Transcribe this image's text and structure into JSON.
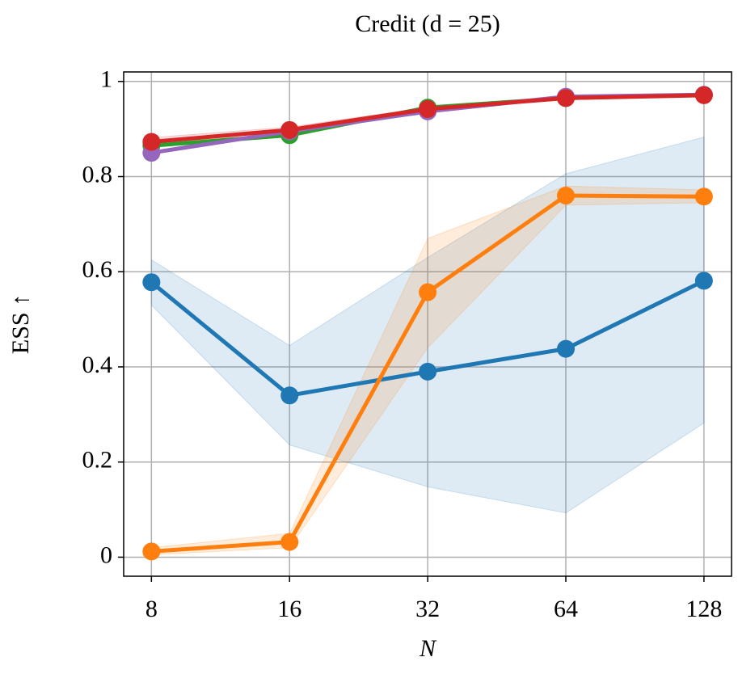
{
  "chart_data": {
    "type": "line",
    "title": "Credit (d = 25)",
    "xlabel": "N",
    "ylabel": "ESS ↑",
    "x": [
      8,
      16,
      32,
      64,
      128
    ],
    "xscale": "log",
    "xlim": [
      6.96,
      147
    ],
    "xticks": [
      8,
      16,
      32,
      64,
      128
    ],
    "ylim": [
      -0.04,
      1.02
    ],
    "yticks": [
      0,
      0.2,
      0.4,
      0.6,
      0.8,
      1
    ],
    "grid": true,
    "series": [
      {
        "color": "#1f77b4",
        "values": [
          0.578,
          0.34,
          0.39,
          0.438,
          0.581
        ],
        "lower": [
          0.53,
          0.236,
          0.148,
          0.093,
          0.282
        ],
        "upper": [
          0.625,
          0.445,
          0.63,
          0.806,
          0.883
        ]
      },
      {
        "color": "#ff7f0e",
        "values": [
          0.012,
          0.032,
          0.557,
          0.76,
          0.758
        ],
        "lower": [
          0.005,
          0.02,
          0.44,
          0.74,
          0.745
        ],
        "upper": [
          0.02,
          0.05,
          0.67,
          0.78,
          0.772
        ]
      },
      {
        "color": "#2ca02c",
        "values": [
          0.865,
          0.887,
          0.945,
          0.965,
          0.972
        ]
      },
      {
        "color": "#9467bd",
        "values": [
          0.85,
          0.895,
          0.937,
          0.968,
          0.972
        ]
      },
      {
        "color": "#d62728",
        "values": [
          0.873,
          0.898,
          0.942,
          0.965,
          0.971
        ],
        "lower": [
          0.865,
          0.892,
          0.938,
          0.962,
          0.968
        ],
        "upper": [
          0.882,
          0.904,
          0.946,
          0.968,
          0.974
        ]
      }
    ]
  }
}
